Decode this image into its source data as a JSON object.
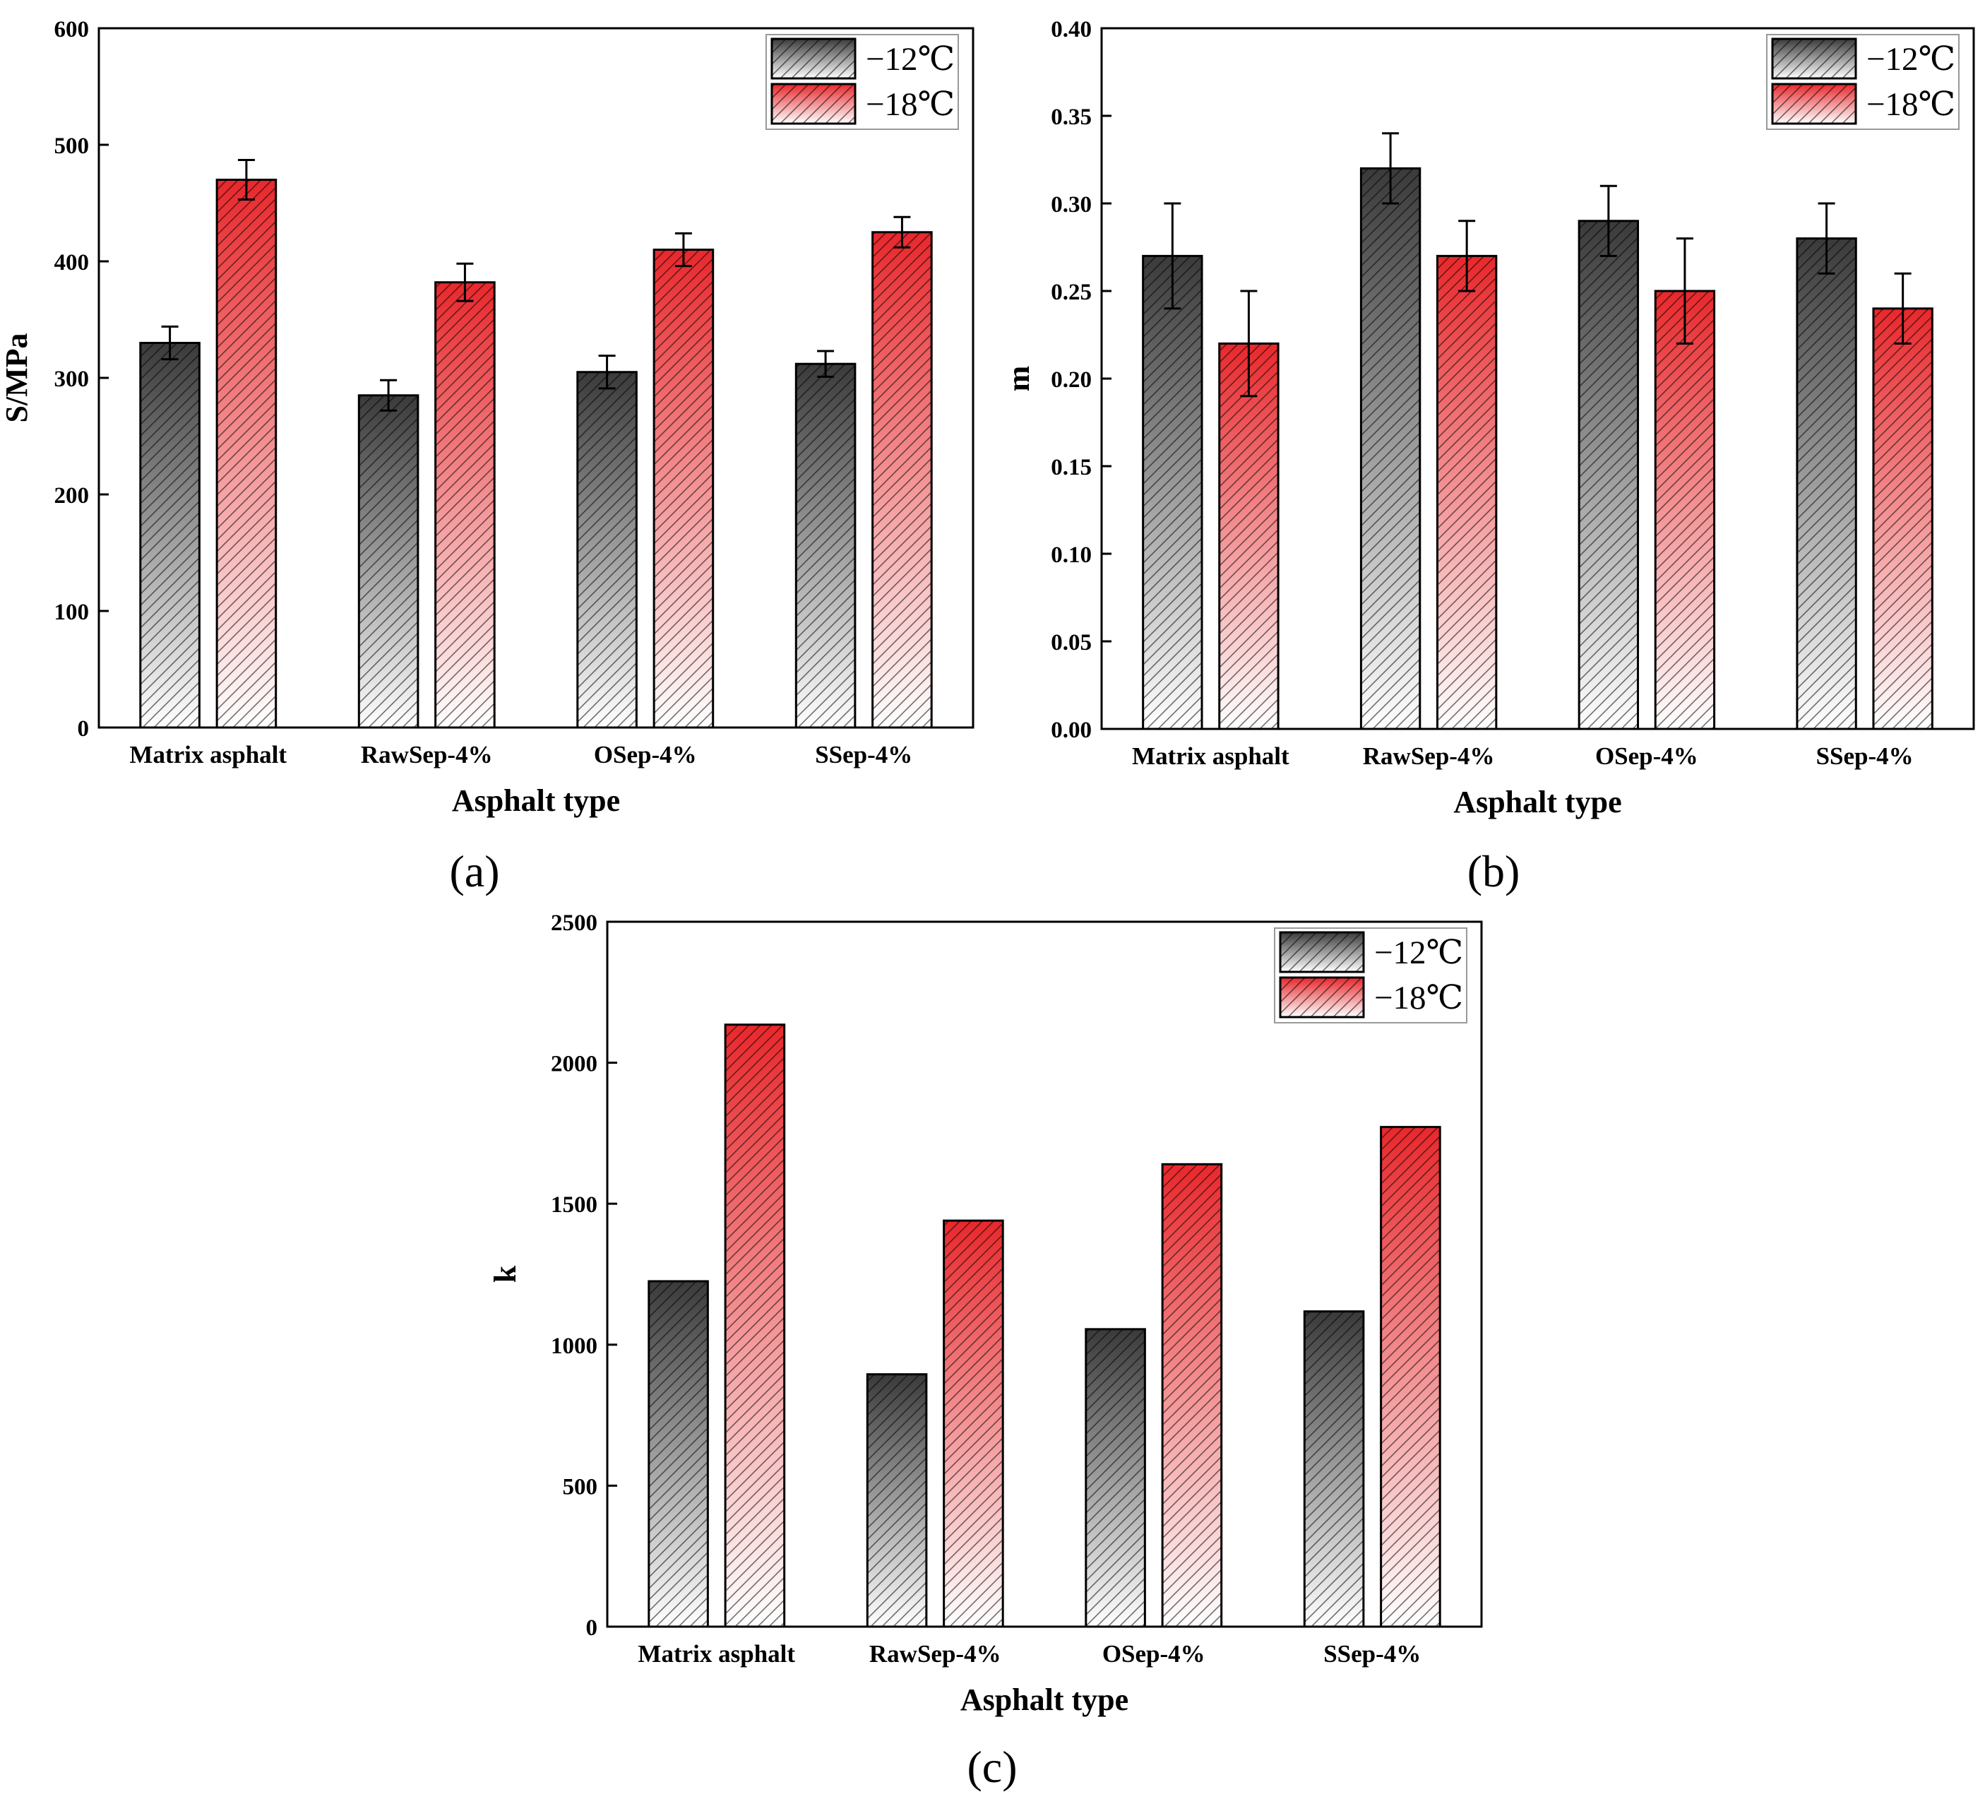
{
  "figure": {
    "legend_entries": [
      "−12℃",
      "−18℃"
    ],
    "series_colors": {
      "minus12": "#3a3a3a",
      "minus18": "#e8282c"
    }
  },
  "chart_data": [
    {
      "type": "bar",
      "panel_label": "(a)",
      "xlabel": "Asphalt type",
      "ylabel": "S/MPa",
      "categories": [
        "Matrix asphalt",
        "RawSep-4%",
        "OSep-4%",
        "SSep-4%"
      ],
      "ylim": [
        0,
        600
      ],
      "yticks": [
        "0",
        "100",
        "200",
        "300",
        "400",
        "500",
        "600"
      ],
      "legend_position": "top-right",
      "series": [
        {
          "name": "−12℃",
          "values": [
            330,
            285,
            305,
            312
          ],
          "errors": [
            14,
            13,
            14,
            11
          ]
        },
        {
          "name": "−18℃",
          "values": [
            470,
            382,
            410,
            425
          ],
          "errors": [
            17,
            16,
            14,
            13
          ]
        }
      ]
    },
    {
      "type": "bar",
      "panel_label": "(b)",
      "xlabel": "Asphalt type",
      "ylabel": "m",
      "categories": [
        "Matrix asphalt",
        "RawSep-4%",
        "OSep-4%",
        "SSep-4%"
      ],
      "ylim": [
        0,
        0.4
      ],
      "yticks": [
        "0.00",
        "0.05",
        "0.10",
        "0.15",
        "0.20",
        "0.25",
        "0.30",
        "0.35",
        "0.40"
      ],
      "legend_position": "top-right",
      "series": [
        {
          "name": "−12℃",
          "values": [
            0.27,
            0.32,
            0.29,
            0.28
          ],
          "errors": [
            0.03,
            0.02,
            0.02,
            0.02
          ]
        },
        {
          "name": "−18℃",
          "values": [
            0.22,
            0.27,
            0.25,
            0.24
          ],
          "errors": [
            0.03,
            0.02,
            0.03,
            0.02
          ]
        }
      ]
    },
    {
      "type": "bar",
      "panel_label": "(c)",
      "xlabel": "Asphalt type",
      "ylabel": "k",
      "categories": [
        "Matrix asphalt",
        "RawSep-4%",
        "OSep-4%",
        "SSep-4%"
      ],
      "ylim": [
        0,
        2500
      ],
      "yticks": [
        "0",
        "500",
        "1000",
        "1500",
        "2000",
        "2500"
      ],
      "legend_position": "top-right",
      "series": [
        {
          "name": "−12℃",
          "values": [
            1225,
            895,
            1055,
            1118
          ],
          "errors": [
            0,
            0,
            0,
            0
          ]
        },
        {
          "name": "−18℃",
          "values": [
            2135,
            1440,
            1640,
            1772
          ],
          "errors": [
            0,
            0,
            0,
            0
          ]
        }
      ]
    }
  ]
}
